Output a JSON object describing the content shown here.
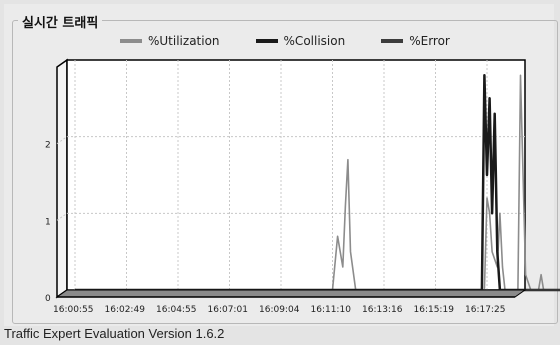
{
  "panel": {
    "group_title": "실시간 트래픽"
  },
  "legend": [
    {
      "label": "%Utilization",
      "color": "#8c8c8c"
    },
    {
      "label": "%Collision",
      "color": "#1a1a1a"
    },
    {
      "label": "%Error",
      "color": "#3c3c3c"
    }
  ],
  "footer": {
    "text": "Traffic Expert Evaluation Version 1.6.2"
  },
  "colors": {
    "plot_background": "#ffffff",
    "wall_frame": "#000000",
    "floor": "#8a8a8a",
    "gridline": "#c8c8c8"
  },
  "chart_data": {
    "type": "line",
    "style": "3d",
    "grid": true,
    "ylim": [
      0,
      3
    ],
    "y_ticks": [
      "0",
      "1",
      "2"
    ],
    "x_ticks": [
      "16:00:55",
      "16:02:49",
      "16:04:55",
      "16:07:01",
      "16:09:04",
      "16:11:10",
      "16:13:16",
      "16:15:19",
      "16:17:25"
    ],
    "series": [
      {
        "name": "%Utilization",
        "color": "#8c8c8c",
        "points": [
          [
            0,
            0
          ],
          [
            5.0,
            0
          ],
          [
            5.1,
            0.7
          ],
          [
            5.2,
            0.3
          ],
          [
            5.25,
            1.1
          ],
          [
            5.3,
            1.7
          ],
          [
            5.35,
            0.5
          ],
          [
            5.45,
            0
          ],
          [
            7.95,
            0
          ],
          [
            8.0,
            1.2
          ],
          [
            8.05,
            1.0
          ],
          [
            8.1,
            0.5
          ],
          [
            8.2,
            0.3
          ],
          [
            8.25,
            1.0
          ],
          [
            8.3,
            0.3
          ],
          [
            8.35,
            0
          ],
          [
            8.6,
            0
          ],
          [
            8.65,
            2.8
          ],
          [
            8.75,
            0.2
          ],
          [
            8.85,
            0
          ],
          [
            9.0,
            0
          ],
          [
            9.05,
            0.2
          ],
          [
            9.1,
            0
          ],
          [
            9.45,
            0
          ],
          [
            9.55,
            1.6
          ],
          [
            9.6,
            1.6
          ]
        ]
      },
      {
        "name": "%Collision",
        "color": "#1a1a1a",
        "points": [
          [
            0,
            0
          ],
          [
            7.9,
            0
          ],
          [
            7.95,
            2.8
          ],
          [
            8.0,
            1.5
          ],
          [
            8.05,
            2.5
          ],
          [
            8.1,
            1.0
          ],
          [
            8.15,
            2.3
          ],
          [
            8.2,
            0.5
          ],
          [
            8.25,
            0
          ],
          [
            9.6,
            0
          ]
        ]
      },
      {
        "name": "%Error",
        "color": "#3c3c3c",
        "points": [
          [
            0,
            0
          ],
          [
            9.6,
            0
          ]
        ]
      }
    ]
  }
}
